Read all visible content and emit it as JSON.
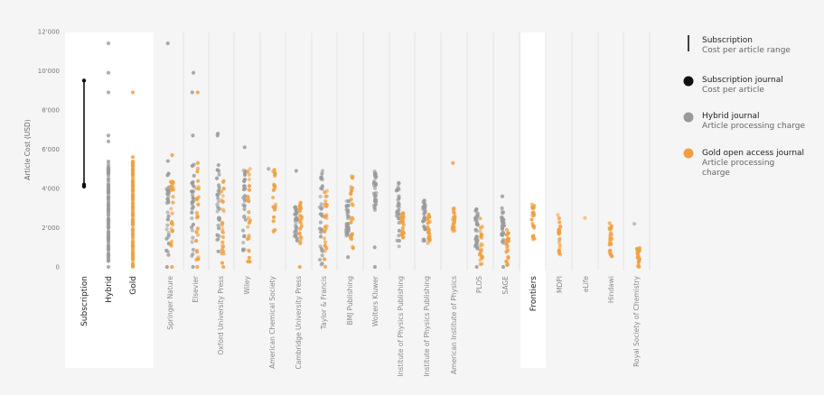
{
  "chart_data": {
    "type": "scatter",
    "title": "",
    "ylabel": "Article Cost (USD)",
    "ylim": [
      0,
      12000
    ],
    "yticks": [
      "0",
      "2'000",
      "4'000",
      "6'000",
      "8'000",
      "10'000",
      "12'000"
    ],
    "grid": false,
    "legend_position": "top-right",
    "legend": [
      {
        "key": "range",
        "title": "Subscription",
        "subtitle": [
          "Cost per article range"
        ]
      },
      {
        "key": "sub",
        "title": "Subscription journal",
        "subtitle": [
          "Cost per article"
        ]
      },
      {
        "key": "hybrid",
        "title": "Hybrid journal",
        "subtitle": [
          "Article processing charge"
        ]
      },
      {
        "key": "gold",
        "title": "Gold open access journal",
        "subtitle": [
          "Article processing",
          "charge"
        ]
      }
    ],
    "colors": {
      "sub": "#111111",
      "hybrid": "#9a9a9a",
      "gold": "#f0a040",
      "highlight_bg": "#ffffff",
      "divider": "#dddddd"
    },
    "overall": {
      "subscription_range": [
        4100,
        9500
      ],
      "subscription_points": [
        4100,
        4200,
        9500
      ],
      "hybrid": {
        "min": 300,
        "max": 5400,
        "extra": [
          0,
          6400,
          6700,
          8900,
          9900,
          11400
        ]
      },
      "gold": {
        "min": 0,
        "max": 5400,
        "extra": [
          5600,
          8900
        ]
      }
    },
    "categories": [
      "Subscription",
      "Hybrid",
      "Gold",
      "Springer Nature",
      "Elsevier",
      "Oxford University Press",
      "Wiley",
      "American Chemical Society",
      "Cambridge University Press",
      "Taylor & Francis",
      "BMJ Publishing",
      "Wolters Kluwer",
      "Institute of Physics Publishing",
      "Institute of Physics Publishing",
      "American Institute of Physics",
      "PLOS",
      "SAGE",
      "Frontiers",
      "MDPI",
      "eLife",
      "Hindawi",
      "Royal Society of Chemistry"
    ],
    "publishers": [
      {
        "name": "Springer Nature",
        "hybrid": {
          "min": 500,
          "max": 5000,
          "extra": [
            0,
            5400,
            11400
          ]
        },
        "gold": {
          "min": 900,
          "max": 4800,
          "extra": [
            0,
            5700
          ]
        }
      },
      {
        "name": "Elsevier",
        "hybrid": {
          "min": 300,
          "max": 5300,
          "extra": [
            0,
            6700,
            8900,
            9900
          ]
        },
        "gold": {
          "min": 300,
          "max": 5100,
          "extra": [
            0,
            5300,
            8900
          ]
        }
      },
      {
        "name": "Oxford University Press",
        "hybrid": {
          "min": 700,
          "max": 5200,
          "extra": [
            6700,
            6800
          ]
        },
        "gold": {
          "min": 500,
          "max": 4500,
          "extra": [
            0,
            200
          ]
        }
      },
      {
        "name": "Wiley",
        "hybrid": {
          "min": 800,
          "max": 5000,
          "extra": [
            6100
          ]
        },
        "gold": {
          "min": 0,
          "max": 5200,
          "extra": []
        }
      },
      {
        "name": "American Chemical Society",
        "hybrid": {
          "min": 5000,
          "max": 5000,
          "extra": []
        },
        "gold": {
          "min": 1700,
          "max": 5000,
          "extra": []
        }
      },
      {
        "name": "Cambridge University Press",
        "hybrid": {
          "min": 1300,
          "max": 3300,
          "extra": [
            4900
          ]
        },
        "gold": {
          "min": 1200,
          "max": 3300,
          "extra": [
            0
          ]
        }
      },
      {
        "name": "Taylor & Francis",
        "hybrid": {
          "min": 0,
          "max": 4900,
          "extra": []
        },
        "gold": {
          "min": 0,
          "max": 4000,
          "extra": []
        }
      },
      {
        "name": "BMJ Publishing",
        "hybrid": {
          "min": 1500,
          "max": 3400,
          "extra": [
            500
          ]
        },
        "gold": {
          "min": 0,
          "max": 4700,
          "extra": []
        }
      },
      {
        "name": "Wolters Kluwer",
        "hybrid": {
          "min": 2900,
          "max": 4900,
          "extra": [
            0,
            1000
          ]
        },
        "gold": {
          "min": 0,
          "max": 0,
          "extra": []
        }
      },
      {
        "name": "Institute of Physics Publishing",
        "hybrid": {
          "min": 1000,
          "max": 4300,
          "extra": []
        },
        "gold": {
          "min": 1500,
          "max": 2800,
          "extra": []
        }
      },
      {
        "name": "Institute of Physics Publishing",
        "hybrid": {
          "min": 1300,
          "max": 3500,
          "extra": []
        },
        "gold": {
          "min": 1200,
          "max": 2700,
          "extra": []
        }
      },
      {
        "name": "American Institute of Physics",
        "hybrid": {
          "min": 0,
          "max": 0,
          "extra": []
        },
        "gold": {
          "min": 1800,
          "max": 3000,
          "extra": [
            5300
          ]
        }
      },
      {
        "name": "PLOS",
        "hybrid": {
          "min": 800,
          "max": 3000,
          "extra": [
            0
          ]
        },
        "gold": {
          "min": 0,
          "max": 2500,
          "extra": []
        }
      },
      {
        "name": "SAGE",
        "hybrid": {
          "min": 1200,
          "max": 3000,
          "extra": [
            0,
            3600
          ]
        },
        "gold": {
          "min": 0,
          "max": 2000,
          "extra": []
        }
      },
      {
        "name": "Frontiers",
        "hybrid": {
          "min": 0,
          "max": 0,
          "extra": []
        },
        "gold": {
          "min": 1200,
          "max": 3200,
          "extra": []
        }
      },
      {
        "name": "MDPI",
        "hybrid": {
          "min": 0,
          "max": 0,
          "extra": []
        },
        "gold": {
          "min": 500,
          "max": 2800,
          "extra": []
        }
      },
      {
        "name": "eLife",
        "hybrid": {
          "min": 0,
          "max": 0,
          "extra": []
        },
        "gold": {
          "min": 2500,
          "max": 2500,
          "extra": []
        }
      },
      {
        "name": "Hindawi",
        "hybrid": {
          "min": 0,
          "max": 0,
          "extra": []
        },
        "gold": {
          "min": 500,
          "max": 2400,
          "extra": []
        }
      },
      {
        "name": "Royal Society of Chemistry",
        "hybrid": {
          "min": 2200,
          "max": 2200,
          "extra": []
        },
        "gold": {
          "min": 0,
          "max": 1000,
          "extra": []
        }
      }
    ]
  }
}
